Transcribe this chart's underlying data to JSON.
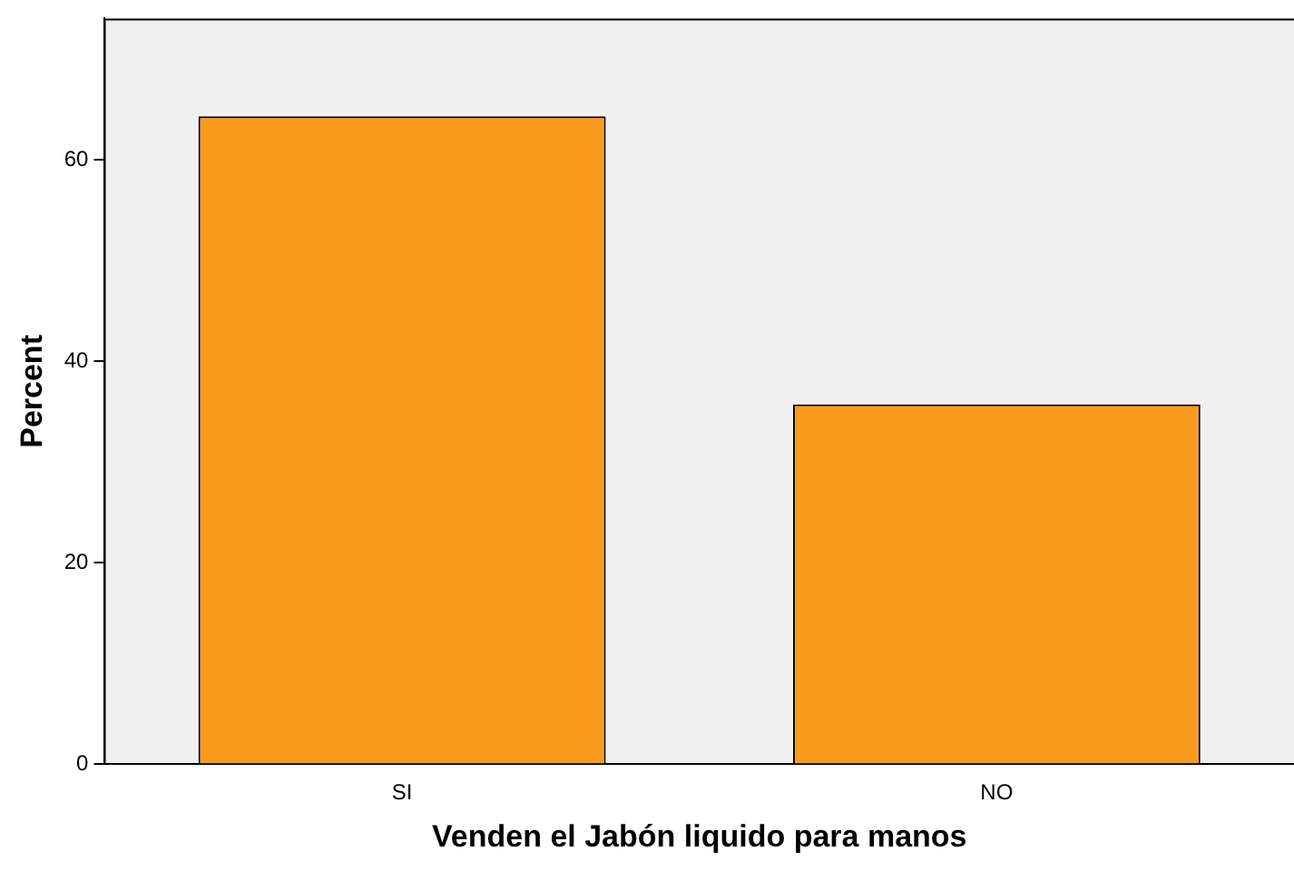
{
  "chart_data": {
    "type": "bar",
    "xlabel": "Venden el Jabón liquido para manos",
    "ylabel": "Percent",
    "categories": [
      "SI",
      "NO"
    ],
    "values": [
      64.3,
      35.7
    ],
    "color": "#f99b1f",
    "ylim": [
      0,
      74
    ],
    "yticks": [
      0,
      20,
      40,
      60
    ],
    "grid": false,
    "legend": false
  }
}
